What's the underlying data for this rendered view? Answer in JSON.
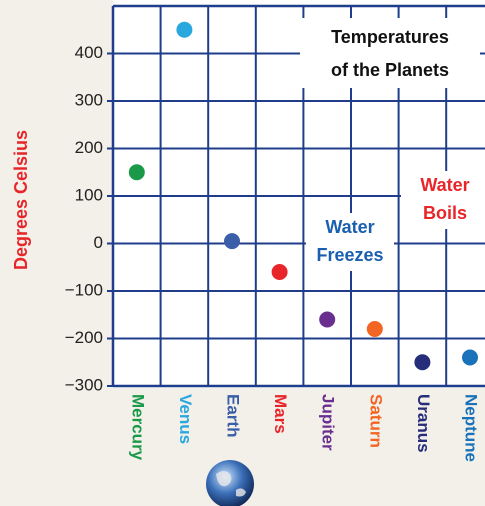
{
  "chart_data": {
    "type": "dot",
    "title": [
      "Temperatures",
      "of the Planets"
    ],
    "y_label": "Degrees Celsius",
    "y_label_color": "#e8262a",
    "categories": [
      "Mercury",
      "Venus",
      "Earth",
      "Mars",
      "Jupiter",
      "Saturn",
      "Uranus",
      "Neptune"
    ],
    "values": [
      150,
      450,
      5,
      -60,
      -160,
      -180,
      -250,
      -240
    ],
    "colors": [
      "#1a9a48",
      "#29a8e0",
      "#3a5fa8",
      "#e8262a",
      "#6a2e8e",
      "#f26522",
      "#262d7a",
      "#1a73ba"
    ],
    "ylim": [
      -300,
      500
    ],
    "yticks": [
      {
        "value": -300,
        "label": "−300"
      },
      {
        "value": -200,
        "label": "−200"
      },
      {
        "value": -100,
        "label": "−100"
      },
      0,
      100,
      200,
      300,
      400
    ],
    "grid": true,
    "grid_color": "#1f3d8a",
    "annotations": [
      {
        "lines": [
          "Water",
          "Freezes"
        ],
        "color": "#1a5fb0"
      },
      {
        "lines": [
          "Water",
          "Boils"
        ],
        "color": "#e8262a"
      }
    ]
  }
}
